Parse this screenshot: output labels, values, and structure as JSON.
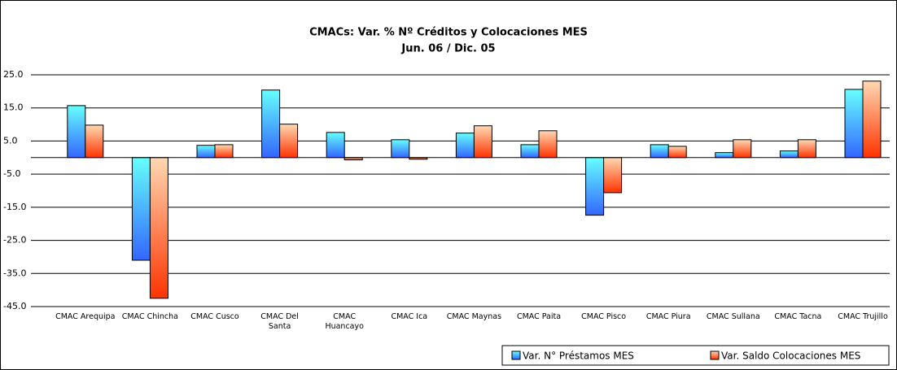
{
  "chart_data": {
    "type": "bar",
    "title": "CMACs: Var. % Nº Créditos y Colocaciones MES",
    "subtitle": "Jun. 06 / Dic. 05",
    "categories": [
      "CMAC Arequipa",
      "CMAC Chincha",
      "CMAC Cusco",
      "CMAC Del Santa",
      "CMAC Huancayo",
      "CMAC Ica",
      "CMAC Maynas",
      "CMAC Paita",
      "CMAC Pisco",
      "CMAC Piura",
      "CMAC Sullana",
      "CMAC Tacna",
      "CMAC Trujillo"
    ],
    "series": [
      {
        "name": "Var. N° Préstamos MES",
        "color": "#3366ff",
        "values": [
          15.7,
          -31.0,
          3.7,
          20.4,
          7.6,
          5.4,
          7.4,
          3.9,
          -17.4,
          3.9,
          1.5,
          2.0,
          20.6
        ]
      },
      {
        "name": "Var. Saldo Colocaciones MES",
        "color": "#ff3300",
        "values": [
          9.8,
          -42.5,
          3.9,
          10.1,
          -0.7,
          -0.5,
          9.6,
          8.1,
          -10.6,
          3.4,
          5.4,
          5.4,
          23.1
        ]
      }
    ],
    "ylim": [
      -45,
      25
    ],
    "yticks": [
      {
        "value": 25,
        "label": "25.0"
      },
      {
        "value": 15,
        "label": "15.0"
      },
      {
        "value": 5,
        "label": "5.0"
      },
      {
        "value": -5,
        "label": "-5.0"
      },
      {
        "value": -15,
        "label": "-15.0"
      },
      {
        "value": -25,
        "label": "-25.0"
      },
      {
        "value": -35,
        "label": "-35.0"
      },
      {
        "value": -45,
        "label": "-45.0"
      }
    ],
    "grid": true,
    "legend": "bottom-right"
  }
}
